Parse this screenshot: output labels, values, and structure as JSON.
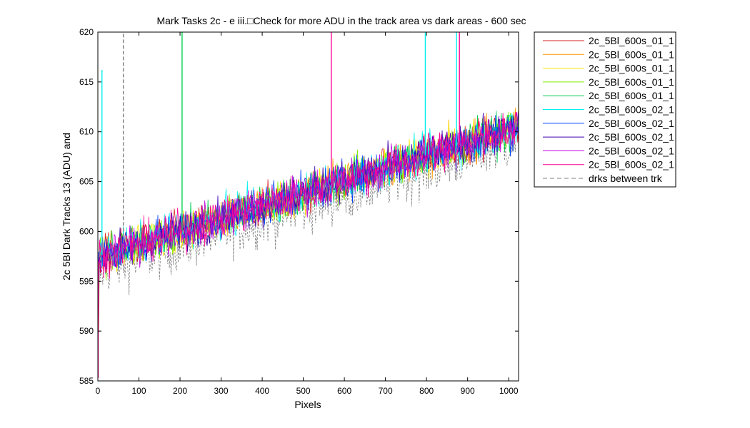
{
  "chart_data": {
    "type": "line",
    "title": "Mark Tasks 2c - e iii.□Check for more ADU in the track area vs dark areas - 600 sec",
    "xlabel": "Pixels",
    "ylabel": "2c 5Bl Dark Tracks 13 (ADU) and",
    "xlim": [
      0,
      1024
    ],
    "ylim": [
      585,
      620
    ],
    "xticks": [
      "0",
      "100",
      "200",
      "300",
      "400",
      "500",
      "600",
      "700",
      "800",
      "900",
      "1000"
    ],
    "yticks": [
      "585",
      "590",
      "595",
      "600",
      "605",
      "610",
      "615",
      "620"
    ],
    "grid": false,
    "legend_position": "outside-right-top",
    "trend": {
      "x": [
        0,
        1024
      ],
      "y": [
        597.5,
        610.5
      ]
    },
    "series": [
      {
        "name": "2c_5Bl_600s_01_1",
        "color": "#d62020",
        "style": "solid"
      },
      {
        "name": "2c_5Bl_600s_01_1",
        "color": "#ff9900",
        "style": "solid"
      },
      {
        "name": "2c_5Bl_600s_01_1",
        "color": "#ffe600",
        "style": "solid"
      },
      {
        "name": "2c_5Bl_600s_01_1",
        "color": "#80ee00",
        "style": "solid"
      },
      {
        "name": "2c_5Bl_600s_01_1",
        "color": "#00d050",
        "style": "solid"
      },
      {
        "name": "2c_5Bl_600s_02_1",
        "color": "#00f0f0",
        "style": "solid"
      },
      {
        "name": "2c_5Bl_600s_02_1",
        "color": "#0040ff",
        "style": "solid"
      },
      {
        "name": "2c_5Bl_600s_02_1",
        "color": "#4000b0",
        "style": "solid"
      },
      {
        "name": "2c_5Bl_600s_02_1",
        "color": "#c000e0",
        "style": "solid"
      },
      {
        "name": "2c_5Bl_600s_02_1",
        "color": "#ff0090",
        "style": "solid"
      },
      {
        "name": "drks between trk",
        "color": "#808080",
        "style": "dashed"
      }
    ],
    "spikes": [
      {
        "x": 10,
        "y": 616.2,
        "color": "#00f0f0"
      },
      {
        "x": 62,
        "y": 620,
        "color": "#808080"
      },
      {
        "x": 205,
        "y": 620,
        "color": "#00d050"
      },
      {
        "x": 568,
        "y": 620,
        "color": "#ff0090"
      },
      {
        "x": 797,
        "y": 620,
        "color": "#00f0f0"
      },
      {
        "x": 873,
        "y": 620,
        "color": "#00f0f0"
      },
      {
        "x": 880,
        "y": 620,
        "color": "#ff0090"
      }
    ]
  }
}
